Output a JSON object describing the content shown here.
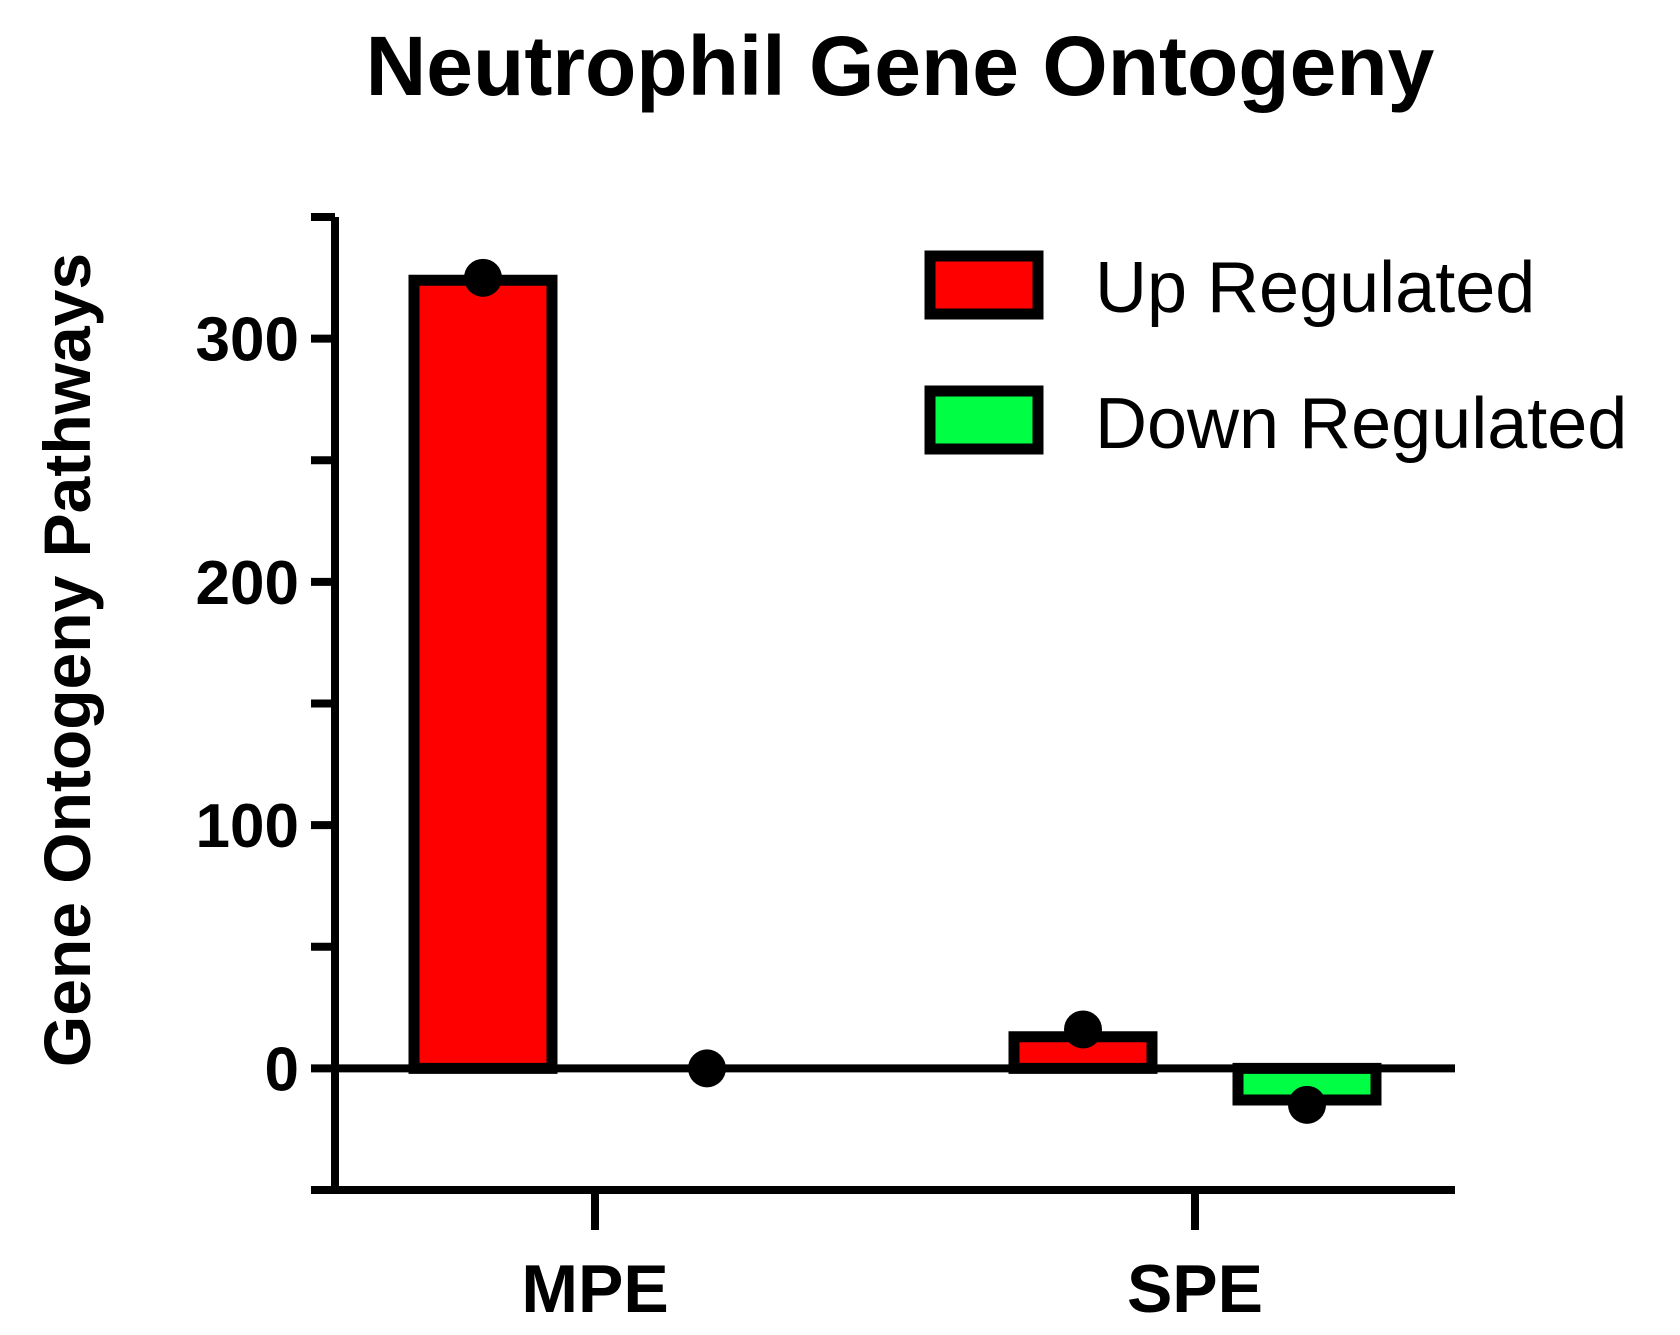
{
  "chart_data": {
    "type": "bar",
    "title": "Neutrophil Gene Ontogeny",
    "xlabel": "",
    "ylabel": "Gene Ontogeny Pathways",
    "categories": [
      "MPE",
      "SPE"
    ],
    "series": [
      {
        "name": "Up Regulated",
        "values": [
          324,
          13
        ],
        "points": [
          325,
          16
        ],
        "color": "#ff0000"
      },
      {
        "name": "Down Regulated",
        "values": [
          0,
          -13
        ],
        "points": [
          0,
          -15
        ],
        "color": "#00ff44"
      }
    ],
    "ylim": [
      -50,
      350
    ],
    "yticks_major": [
      0,
      100,
      200,
      300
    ],
    "yticks_minor": [
      -50,
      50,
      150,
      250,
      350
    ],
    "grid": false,
    "legend_position": "top-right"
  }
}
